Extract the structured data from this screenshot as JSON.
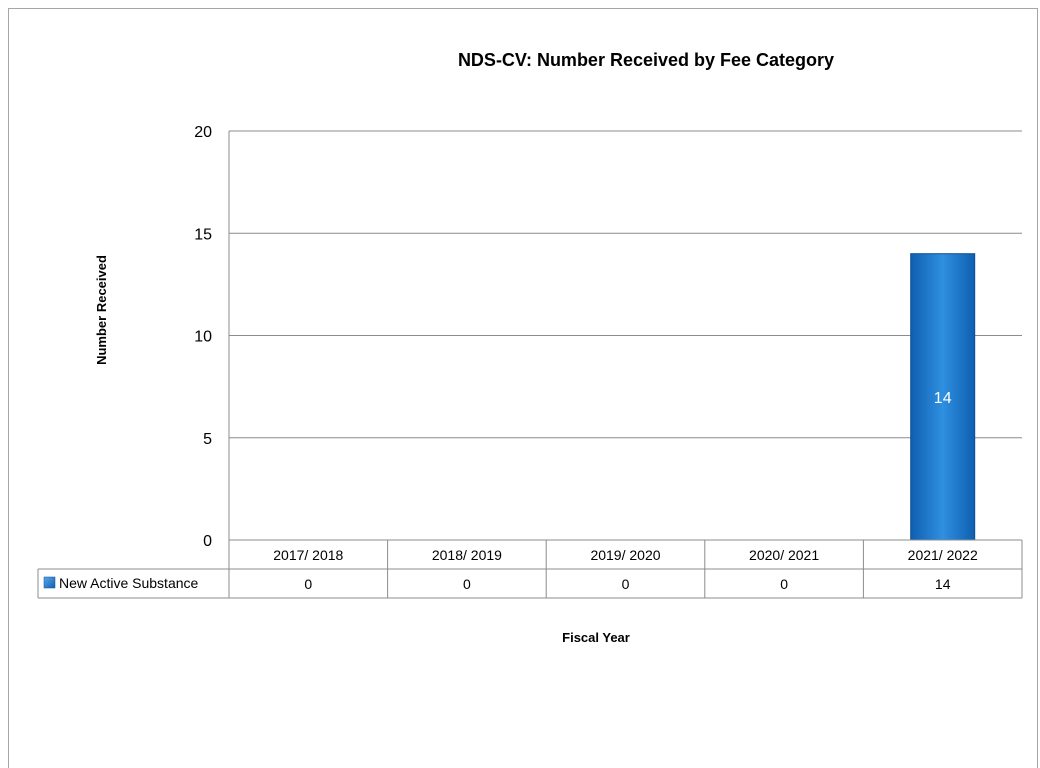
{
  "chart_data": {
    "type": "bar",
    "title": "NDS-CV: Number Received by Fee Category",
    "xlabel": "Fiscal Year",
    "ylabel": "Number Received",
    "ylim": [
      0,
      20
    ],
    "yticks": [
      0,
      5,
      10,
      15,
      20
    ],
    "grid": true,
    "legend": "data-table-left",
    "categories": [
      "2017/ 2018",
      "2018/ 2019",
      "2019/ 2020",
      "2020/ 2021",
      "2021/ 2022"
    ],
    "series": [
      {
        "name": "New Active Substance",
        "values": [
          0,
          0,
          0,
          0,
          14
        ],
        "color": "#1f7bd1"
      }
    ]
  }
}
